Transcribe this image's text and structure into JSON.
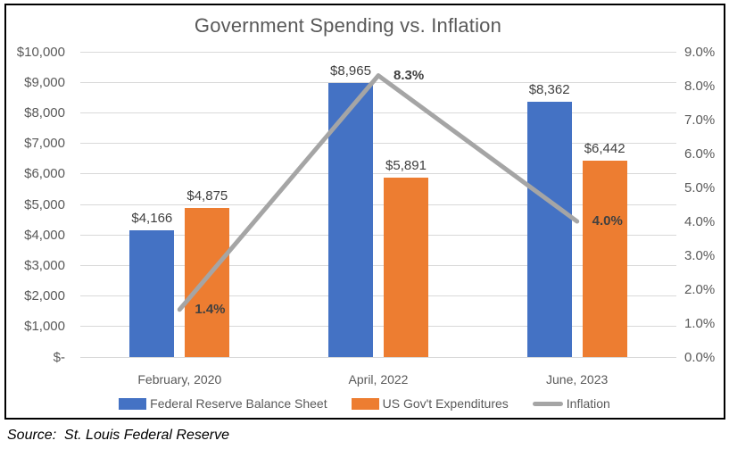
{
  "title": "Government Spending vs. Inflation",
  "source": "Source:  St. Louis Federal Reserve",
  "chart_data": {
    "type": "combo",
    "title": "Government Spending vs. Inflation",
    "categories": [
      "February, 2020",
      "April, 2022",
      "June, 2023"
    ],
    "series": [
      {
        "name": "Federal Reserve Balance Sheet",
        "type": "bar",
        "axis": "left",
        "color": "#4472C4",
        "values": [
          4166,
          8965,
          8362
        ],
        "labels": [
          "$4,166",
          "$8,965",
          "$8,362"
        ]
      },
      {
        "name": "US Gov't Expenditures",
        "type": "bar",
        "axis": "left",
        "color": "#ED7D31",
        "values": [
          4875,
          5891,
          6442
        ],
        "labels": [
          "$4,875",
          "$5,891",
          "$6,442"
        ]
      },
      {
        "name": "Inflation",
        "type": "line",
        "axis": "right",
        "color": "#A5A5A5",
        "values": [
          1.4,
          8.3,
          4.0
        ],
        "labels": [
          "1.4%",
          "8.3%",
          "4.0%"
        ]
      }
    ],
    "left_axis": {
      "min": 0,
      "max": 10000,
      "step": 1000,
      "tick_labels": [
        "$-",
        "$1,000",
        "$2,000",
        "$3,000",
        "$4,000",
        "$5,000",
        "$6,000",
        "$7,000",
        "$8,000",
        "$9,000",
        "$10,000"
      ]
    },
    "right_axis": {
      "min": 0,
      "max": 9,
      "step": 1,
      "tick_labels": [
        "0.0%",
        "1.0%",
        "2.0%",
        "3.0%",
        "4.0%",
        "5.0%",
        "6.0%",
        "7.0%",
        "8.0%",
        "9.0%"
      ]
    },
    "grid": true,
    "legend_position": "bottom"
  },
  "colors": {
    "gridline": "#D9D9D9",
    "axis_text": "#595959",
    "title_text": "#595959",
    "data_label_text": "#404040",
    "frame_border": "#000000"
  }
}
